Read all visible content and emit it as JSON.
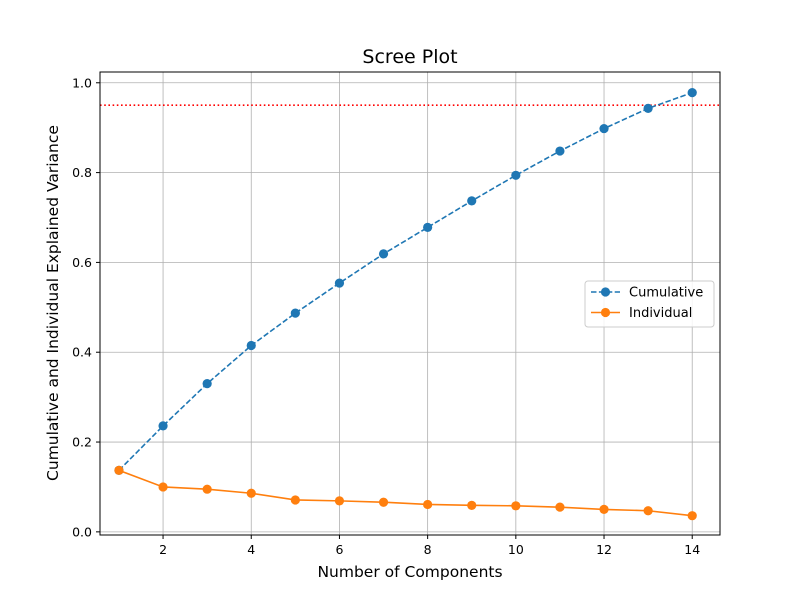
{
  "chart_data": {
    "type": "line",
    "title": "Scree Plot",
    "xlabel": "Number of Components",
    "ylabel": "Cumulative and Individual Explained Variance",
    "x": [
      1,
      2,
      3,
      4,
      5,
      6,
      7,
      8,
      9,
      10,
      11,
      12,
      13,
      14
    ],
    "xlim": [
      0.57,
      14.63
    ],
    "ylim": [
      -0.007,
      1.024
    ],
    "xticks": [
      2,
      4,
      6,
      8,
      10,
      12,
      14
    ],
    "xtick_labels": [
      "2",
      "4",
      "6",
      "8",
      "10",
      "12",
      "14"
    ],
    "yticks": [
      0.0,
      0.2,
      0.4,
      0.6,
      0.8,
      1.0
    ],
    "ytick_labels": [
      "0.0",
      "0.2",
      "0.4",
      "0.6",
      "0.8",
      "1.0"
    ],
    "grid": true,
    "legend_position": "center-right",
    "series": [
      {
        "name": "Cumulative",
        "color": "#1f77b4",
        "linestyle": "dashed",
        "marker": "circle",
        "values": [
          0.137,
          0.236,
          0.33,
          0.415,
          0.487,
          0.554,
          0.619,
          0.678,
          0.737,
          0.794,
          0.848,
          0.898,
          0.943,
          0.978
        ]
      },
      {
        "name": "Individual",
        "color": "#ff7f0e",
        "linestyle": "solid",
        "marker": "circle",
        "values": [
          0.137,
          0.1,
          0.095,
          0.086,
          0.071,
          0.069,
          0.066,
          0.061,
          0.059,
          0.058,
          0.055,
          0.05,
          0.047,
          0.036
        ]
      }
    ],
    "reference_lines": [
      {
        "orientation": "horizontal",
        "y": 0.95,
        "color": "#ff0000",
        "linestyle": "dotted"
      }
    ]
  }
}
